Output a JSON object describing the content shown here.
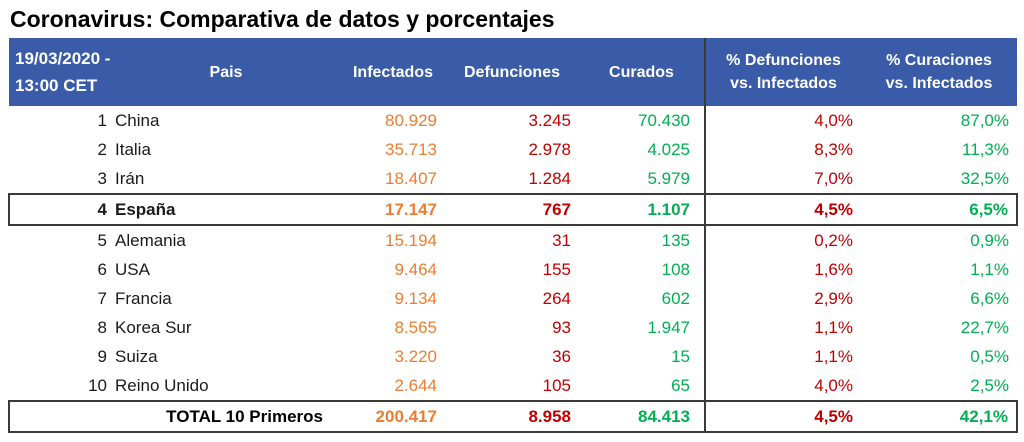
{
  "title": "Coronavirus: Comparativa de datos y porcentajes",
  "colors": {
    "header_bg": "#3A5CA8",
    "header_text": "#FFFFFF",
    "infectados": "#ED7D31",
    "defunciones": "#C00000",
    "curados": "#00B050",
    "divider": "#3A3A3A",
    "highlight_border": "#3A3A3A",
    "title_text": "#000000"
  },
  "table": {
    "header": {
      "date_line1": "19/03/2020 -",
      "date_line2": "13:00 CET",
      "pais": "Pais",
      "infectados": "Infectados",
      "defunciones": "Defunciones",
      "curados": "Curados",
      "pct_def_line1": "% Defunciones",
      "pct_def_line2": "vs. Infectados",
      "pct_cur_line1": "% Curaciones",
      "pct_cur_line2": "vs. Infectados"
    },
    "rows": [
      {
        "rank": "1",
        "pais": "China",
        "infectados": "80.929",
        "defunciones": "3.245",
        "curados": "70.430",
        "pct_defunciones": "4,0%",
        "pct_curaciones": "87,0%",
        "highlight": false
      },
      {
        "rank": "2",
        "pais": "Italia",
        "infectados": "35.713",
        "defunciones": "2.978",
        "curados": "4.025",
        "pct_defunciones": "8,3%",
        "pct_curaciones": "11,3%",
        "highlight": false
      },
      {
        "rank": "3",
        "pais": "Irán",
        "infectados": "18.407",
        "defunciones": "1.284",
        "curados": "5.979",
        "pct_defunciones": "7,0%",
        "pct_curaciones": "32,5%",
        "highlight": false
      },
      {
        "rank": "4",
        "pais": "España",
        "infectados": "17.147",
        "defunciones": "767",
        "curados": "1.107",
        "pct_defunciones": "4,5%",
        "pct_curaciones": "6,5%",
        "highlight": true
      },
      {
        "rank": "5",
        "pais": "Alemania",
        "infectados": "15.194",
        "defunciones": "31",
        "curados": "135",
        "pct_defunciones": "0,2%",
        "pct_curaciones": "0,9%",
        "highlight": false
      },
      {
        "rank": "6",
        "pais": "USA",
        "infectados": "9.464",
        "defunciones": "155",
        "curados": "108",
        "pct_defunciones": "1,6%",
        "pct_curaciones": "1,1%",
        "highlight": false
      },
      {
        "rank": "7",
        "pais": "Francia",
        "infectados": "9.134",
        "defunciones": "264",
        "curados": "602",
        "pct_defunciones": "2,9%",
        "pct_curaciones": "6,6%",
        "highlight": false
      },
      {
        "rank": "8",
        "pais": "Korea Sur",
        "infectados": "8.565",
        "defunciones": "93",
        "curados": "1.947",
        "pct_defunciones": "1,1%",
        "pct_curaciones": "22,7%",
        "highlight": false
      },
      {
        "rank": "9",
        "pais": "Suiza",
        "infectados": "3.220",
        "defunciones": "36",
        "curados": "15",
        "pct_defunciones": "1,1%",
        "pct_curaciones": "0,5%",
        "highlight": false
      },
      {
        "rank": "10",
        "pais": "Reino Unido",
        "infectados": "2.644",
        "defunciones": "105",
        "curados": "65",
        "pct_defunciones": "4,0%",
        "pct_curaciones": "2,5%",
        "highlight": false
      }
    ],
    "total": {
      "label": "TOTAL 10 Primeros",
      "infectados": "200.417",
      "defunciones": "8.958",
      "curados": "84.413",
      "pct_defunciones": "4,5%",
      "pct_curaciones": "42,1%"
    }
  },
  "chart_data": {
    "type": "table",
    "title": "Coronavirus: Comparativa de datos y porcentajes",
    "timestamp_label": "19/03/2020 - 13:00 CET",
    "columns": [
      "Pais",
      "Infectados",
      "Defunciones",
      "Curados",
      "% Defunciones vs. Infectados",
      "% Curaciones vs. Infectados"
    ],
    "rows": [
      [
        "1 China",
        80929,
        3245,
        70430,
        4.0,
        87.0
      ],
      [
        "2 Italia",
        35713,
        2978,
        4025,
        8.3,
        11.3
      ],
      [
        "3 Irán",
        18407,
        1284,
        5979,
        7.0,
        32.5
      ],
      [
        "4 España",
        17147,
        767,
        1107,
        4.5,
        6.5
      ],
      [
        "5 Alemania",
        15194,
        31,
        135,
        0.2,
        0.9
      ],
      [
        "6 USA",
        9464,
        155,
        108,
        1.6,
        1.1
      ],
      [
        "7 Francia",
        9134,
        264,
        602,
        2.9,
        6.6
      ],
      [
        "8 Korea Sur",
        8565,
        93,
        1947,
        1.1,
        22.7
      ],
      [
        "9 Suiza",
        3220,
        36,
        15,
        1.1,
        0.5
      ],
      [
        "10 Reino Unido",
        2644,
        105,
        65,
        4.0,
        2.5
      ]
    ],
    "total_row": [
      "TOTAL 10 Primeros",
      200417,
      8958,
      84413,
      4.5,
      42.1
    ],
    "highlighted_rows": [
      "4 España",
      "TOTAL 10 Primeros"
    ]
  }
}
